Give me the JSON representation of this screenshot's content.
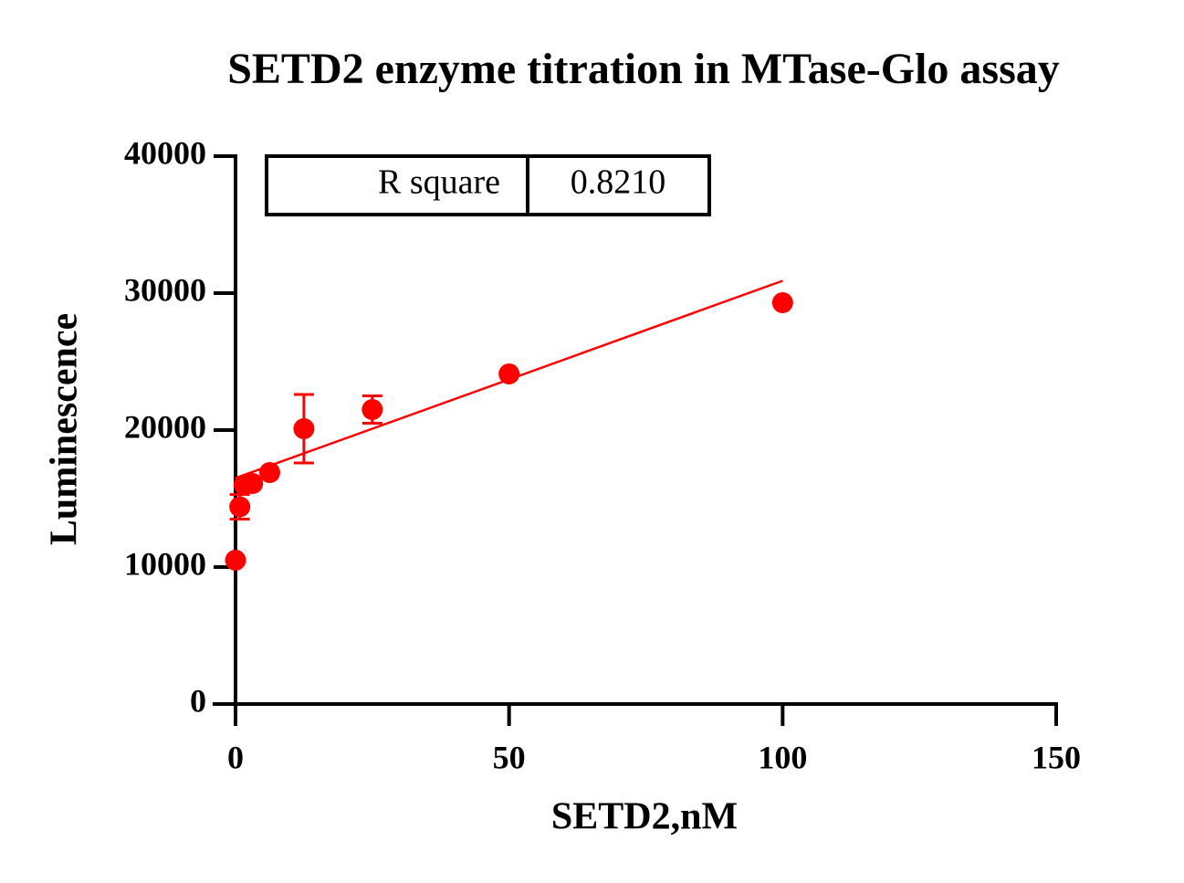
{
  "chart_data": {
    "type": "scatter",
    "title": "SETD2 enzyme titration in MTase-Glo assay",
    "x_label": "SETD2,nM",
    "y_label": "Luminescence",
    "x": [
      0,
      0.78,
      1.5625,
      3.125,
      6.25,
      12.5,
      25,
      50,
      100
    ],
    "values": [
      10500,
      14400,
      16000,
      16100,
      16900,
      20100,
      21500,
      24100,
      29300
    ],
    "errors": [
      null,
      900,
      null,
      null,
      null,
      2500,
      1000,
      null,
      null
    ],
    "color": "#ff0000",
    "fit": {
      "x": [
        0,
        100
      ],
      "values": [
        16500,
        30900
      ]
    },
    "annotation": {
      "label": "R square",
      "value": "0.8210"
    },
    "xlim": [
      0,
      150
    ],
    "xticks": [
      0,
      50,
      100,
      150
    ],
    "ylim": [
      0,
      40000
    ],
    "yticks": [
      0,
      10000,
      20000,
      30000,
      40000
    ],
    "grid": false
  }
}
